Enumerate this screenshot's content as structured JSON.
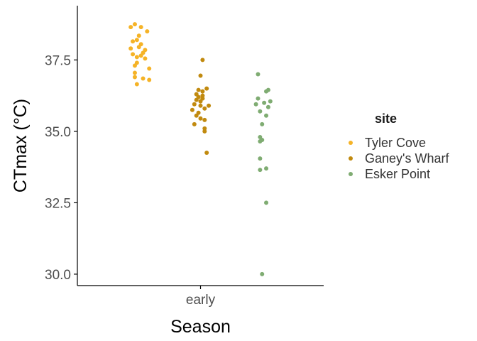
{
  "chart_data": {
    "type": "scatter",
    "title": "",
    "xlabel": "Season",
    "ylabel": "CTmax (°C)",
    "categories": [
      "early"
    ],
    "ylim": [
      29.6,
      39.4
    ],
    "yticks": [
      30.0,
      32.5,
      35.0,
      37.5
    ],
    "ytick_labels": [
      "30.0",
      "32.5",
      "35.0",
      "37.5"
    ],
    "grid": false,
    "legend": {
      "title": "site",
      "position": "right"
    },
    "series": [
      {
        "name": "Tyler Cove",
        "color": "#f5b327",
        "offset": -0.3,
        "points": [
          {
            "dx": -0.02,
            "y": 38.75
          },
          {
            "dx": -0.04,
            "y": 38.65
          },
          {
            "dx": 0.01,
            "y": 38.65
          },
          {
            "dx": 0.04,
            "y": 38.5
          },
          {
            "dx": 0.0,
            "y": 38.35
          },
          {
            "dx": -0.01,
            "y": 38.2
          },
          {
            "dx": -0.03,
            "y": 38.15
          },
          {
            "dx": 0.01,
            "y": 38.05
          },
          {
            "dx": 0.0,
            "y": 37.95
          },
          {
            "dx": -0.04,
            "y": 37.9
          },
          {
            "dx": 0.03,
            "y": 37.85
          },
          {
            "dx": 0.02,
            "y": 37.75
          },
          {
            "dx": -0.03,
            "y": 37.7
          },
          {
            "dx": 0.01,
            "y": 37.65
          },
          {
            "dx": -0.01,
            "y": 37.6
          },
          {
            "dx": 0.03,
            "y": 37.55
          },
          {
            "dx": -0.01,
            "y": 37.4
          },
          {
            "dx": -0.02,
            "y": 37.3
          },
          {
            "dx": 0.05,
            "y": 37.2
          },
          {
            "dx": -0.02,
            "y": 37.05
          },
          {
            "dx": -0.02,
            "y": 36.9
          },
          {
            "dx": 0.02,
            "y": 36.85
          },
          {
            "dx": 0.05,
            "y": 36.8
          },
          {
            "dx": -0.01,
            "y": 36.65
          }
        ]
      },
      {
        "name": "Ganey's Wharf",
        "color": "#c18a0f",
        "offset": 0.0,
        "points": [
          {
            "dx": 0.01,
            "y": 37.5
          },
          {
            "dx": 0.0,
            "y": 36.95
          },
          {
            "dx": 0.03,
            "y": 36.5
          },
          {
            "dx": -0.01,
            "y": 36.45
          },
          {
            "dx": 0.01,
            "y": 36.4
          },
          {
            "dx": -0.02,
            "y": 36.3
          },
          {
            "dx": 0.01,
            "y": 36.25
          },
          {
            "dx": -0.01,
            "y": 36.2
          },
          {
            "dx": 0.01,
            "y": 36.15
          },
          {
            "dx": -0.02,
            "y": 36.1
          },
          {
            "dx": 0.0,
            "y": 36.05
          },
          {
            "dx": -0.03,
            "y": 35.95
          },
          {
            "dx": 0.0,
            "y": 35.9
          },
          {
            "dx": 0.04,
            "y": 35.9
          },
          {
            "dx": 0.02,
            "y": 35.8
          },
          {
            "dx": -0.04,
            "y": 35.75
          },
          {
            "dx": -0.01,
            "y": 35.65
          },
          {
            "dx": -0.02,
            "y": 35.55
          },
          {
            "dx": 0.0,
            "y": 35.45
          },
          {
            "dx": 0.02,
            "y": 35.4
          },
          {
            "dx": -0.03,
            "y": 35.25
          },
          {
            "dx": 0.02,
            "y": 35.1
          },
          {
            "dx": 0.02,
            "y": 35.0
          },
          {
            "dx": 0.03,
            "y": 34.25
          }
        ]
      },
      {
        "name": "Esker Point",
        "color": "#7fac72",
        "offset": 0.3,
        "points": [
          {
            "dx": -0.02,
            "y": 37.0
          },
          {
            "dx": 0.03,
            "y": 36.45
          },
          {
            "dx": 0.02,
            "y": 36.4
          },
          {
            "dx": -0.02,
            "y": 36.15
          },
          {
            "dx": 0.04,
            "y": 36.05
          },
          {
            "dx": 0.01,
            "y": 36.0
          },
          {
            "dx": -0.03,
            "y": 35.95
          },
          {
            "dx": 0.03,
            "y": 35.85
          },
          {
            "dx": -0.01,
            "y": 35.7
          },
          {
            "dx": 0.02,
            "y": 35.55
          },
          {
            "dx": 0.0,
            "y": 35.25
          },
          {
            "dx": -0.01,
            "y": 34.8
          },
          {
            "dx": 0.0,
            "y": 34.7
          },
          {
            "dx": -0.01,
            "y": 34.65
          },
          {
            "dx": -0.01,
            "y": 34.05
          },
          {
            "dx": 0.02,
            "y": 33.7
          },
          {
            "dx": -0.01,
            "y": 33.65
          },
          {
            "dx": 0.02,
            "y": 32.5
          },
          {
            "dx": 0.0,
            "y": 30.0
          }
        ]
      }
    ]
  }
}
